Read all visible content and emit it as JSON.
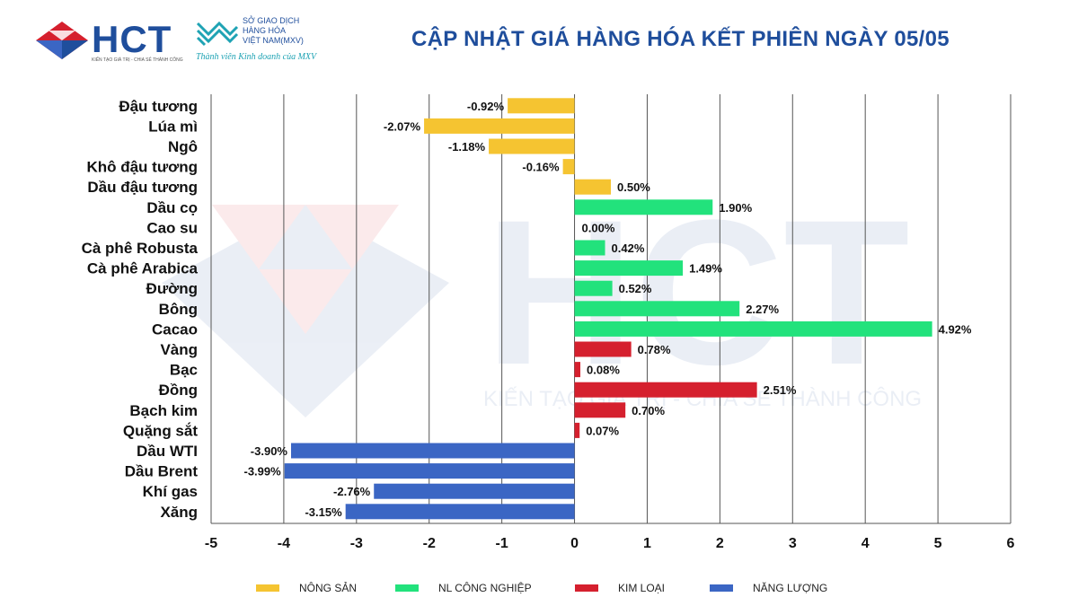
{
  "header": {
    "hct_brand": "HCT",
    "hct_tagline": "KIẾN TẠO GIÁ TRỊ - CHIA SẺ THÀNH CÔNG",
    "mxv_line1": "SỞ GIAO DỊCH",
    "mxv_line2": "HÀNG HÓA",
    "mxv_line3": "VIỆT NAM(MXV)",
    "mxv_member": "Thành viên Kinh doanh của MXV",
    "title": "CẬP NHẬT GIÁ HÀNG HÓA KẾT PHIÊN NGÀY 05/05"
  },
  "watermark": {
    "text": "HCT",
    "tagline": "KIẾN TẠO GIÁ TRỊ - CHIA SẺ THÀNH CÔNG"
  },
  "colors": {
    "nong_san": "#f5c431",
    "nl_cong_nghiep": "#22e27c",
    "kim_loai": "#d5202e",
    "nang_luong": "#3b66c4",
    "title": "#1f4e9c"
  },
  "chart_data": {
    "type": "bar",
    "orientation": "horizontal",
    "title": "CẬP NHẬT GIÁ HÀNG HÓA KẾT PHIÊN NGÀY 05/05",
    "xlim": [
      -5,
      6
    ],
    "xticks": [
      "-5",
      "-4",
      "-3",
      "-2",
      "-1",
      "0",
      "1",
      "2",
      "3",
      "4",
      "5",
      "6"
    ],
    "grid": true,
    "legend_position": "bottom",
    "groups": [
      {
        "name": "NÔNG SẢN",
        "color_key": "nong_san"
      },
      {
        "name": "NL CÔNG NGHIỆP",
        "color_key": "nl_cong_nghiep"
      },
      {
        "name": "KIM LOẠI",
        "color_key": "kim_loai"
      },
      {
        "name": "NĂNG LƯỢNG",
        "color_key": "nang_luong"
      }
    ],
    "categories": [
      "Đậu tương",
      "Lúa mì",
      "Ngô",
      "Khô đậu tương",
      "Dầu đậu tương",
      "Dầu cọ",
      "Cao su",
      "Cà phê Robusta",
      "Cà phê Arabica",
      "Đường",
      "Bông",
      "Cacao",
      "Vàng",
      "Bạc",
      "Đồng",
      "Bạch kim",
      "Quặng sắt",
      "Dầu WTI",
      "Dầu Brent",
      "Khí gas",
      "Xăng"
    ],
    "values": [
      -0.92,
      -2.07,
      -1.18,
      -0.16,
      0.5,
      1.9,
      0.0,
      0.42,
      1.49,
      0.52,
      2.27,
      4.92,
      0.78,
      0.08,
      2.51,
      0.7,
      0.07,
      -3.9,
      -3.99,
      -2.76,
      -3.15
    ],
    "labels": [
      "-0.92%",
      "-2.07%",
      "-1.18%",
      "-0.16%",
      "0.50%",
      "1.90%",
      "0.00%",
      "0.42%",
      "1.49%",
      "0.52%",
      "2.27%",
      "4.92%",
      "0.78%",
      "0.08%",
      "2.51%",
      "0.70%",
      "0.07%",
      "-3.90%",
      "-3.99%",
      "-2.76%",
      "-3.15%"
    ],
    "group_index": [
      0,
      0,
      0,
      0,
      0,
      1,
      1,
      1,
      1,
      1,
      1,
      1,
      2,
      2,
      2,
      2,
      2,
      3,
      3,
      3,
      3
    ]
  }
}
